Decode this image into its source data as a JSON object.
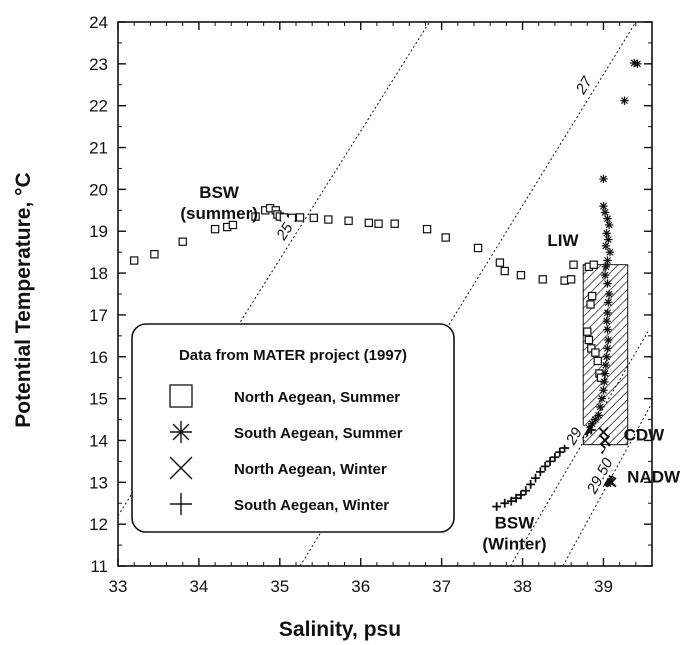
{
  "chart_data": {
    "type": "scatter",
    "xlabel": "Salinity, psu",
    "ylabel": "Potential Temperature, °C",
    "xlim": [
      33,
      39.6
    ],
    "ylim": [
      11,
      24
    ],
    "x_ticks": [
      "33",
      "34",
      "35",
      "36",
      "37",
      "38",
      "39"
    ],
    "y_ticks": [
      "11",
      "12",
      "13",
      "14",
      "15",
      "16",
      "17",
      "18",
      "19",
      "20",
      "21",
      "22",
      "23",
      "24"
    ],
    "grid": false,
    "legend": {
      "title": "Data from MATER project (1997)",
      "placement": "bottom-left inside plot",
      "entries": [
        {
          "label": "North Aegean, Summer",
          "marker": "square"
        },
        {
          "label": "South Aegean, Summer",
          "marker": "asterisk"
        },
        {
          "label": "North Aegean, Winter",
          "marker": "x"
        },
        {
          "label": "South Aegean, Winter",
          "marker": "plus"
        }
      ]
    },
    "isopycnals": [
      {
        "label": "25",
        "points": [
          [
            33.0,
            12.2
          ],
          [
            36.85,
            24.0
          ]
        ]
      },
      {
        "label": "27",
        "points": [
          [
            35.25,
            11.0
          ],
          [
            39.4,
            24.0
          ]
        ]
      },
      {
        "label": "29",
        "points": [
          [
            37.85,
            11.0
          ],
          [
            39.55,
            16.6
          ]
        ]
      },
      {
        "label": "29.50",
        "points": [
          [
            38.5,
            11.0
          ],
          [
            39.6,
            14.9
          ]
        ]
      }
    ],
    "water_masses": [
      {
        "label_lines": [
          "BSW",
          "(summer)"
        ],
        "x": 34.25,
        "y": 19.8
      },
      {
        "label_lines": [
          "LIW"
        ],
        "x": 38.5,
        "y": 18.65
      },
      {
        "label_lines": [
          "CDW"
        ],
        "x": 39.5,
        "y": 14.0
      },
      {
        "label_lines": [
          "NADW"
        ],
        "x": 39.62,
        "y": 13.0
      },
      {
        "label_lines": [
          "BSW",
          "(Winter)"
        ],
        "x": 37.9,
        "y": 11.9
      }
    ],
    "hatched_region": {
      "x": [
        38.75,
        39.3
      ],
      "y": [
        13.9,
        18.2
      ]
    },
    "series": [
      {
        "name": "North Aegean, Summer",
        "marker": "square",
        "points": [
          [
            33.2,
            18.3
          ],
          [
            33.45,
            18.45
          ],
          [
            33.8,
            18.75
          ],
          [
            34.2,
            19.05
          ],
          [
            34.35,
            19.1
          ],
          [
            34.42,
            19.15
          ],
          [
            34.7,
            19.35
          ],
          [
            34.82,
            19.5
          ],
          [
            34.88,
            19.55
          ],
          [
            34.95,
            19.5
          ],
          [
            34.97,
            19.4
          ],
          [
            35.0,
            19.35
          ],
          [
            35.05,
            19.33
          ],
          [
            35.15,
            19.32
          ],
          [
            35.25,
            19.33
          ],
          [
            35.42,
            19.32
          ],
          [
            35.6,
            19.28
          ],
          [
            35.85,
            19.25
          ],
          [
            36.1,
            19.2
          ],
          [
            36.22,
            19.18
          ],
          [
            36.42,
            19.18
          ],
          [
            36.82,
            19.05
          ],
          [
            37.05,
            18.85
          ],
          [
            37.45,
            18.6
          ],
          [
            37.72,
            18.25
          ],
          [
            37.78,
            18.05
          ],
          [
            37.98,
            17.95
          ],
          [
            38.25,
            17.85
          ],
          [
            38.52,
            17.82
          ],
          [
            38.6,
            17.85
          ],
          [
            38.63,
            18.2
          ],
          [
            38.82,
            18.15
          ],
          [
            38.88,
            18.2
          ],
          [
            38.86,
            17.45
          ],
          [
            38.84,
            17.25
          ],
          [
            38.8,
            16.6
          ],
          [
            38.82,
            16.4
          ],
          [
            38.85,
            16.2
          ],
          [
            38.9,
            16.1
          ],
          [
            38.93,
            15.9
          ],
          [
            38.95,
            15.6
          ],
          [
            38.97,
            15.5
          ]
        ]
      },
      {
        "name": "South Aegean, Summer",
        "marker": "asterisk",
        "points": [
          [
            39.38,
            23.02
          ],
          [
            39.42,
            23.0
          ],
          [
            39.26,
            22.12
          ],
          [
            39.0,
            20.25
          ],
          [
            39.0,
            19.6
          ],
          [
            39.02,
            19.45
          ],
          [
            39.05,
            19.3
          ],
          [
            39.07,
            19.15
          ],
          [
            39.04,
            18.95
          ],
          [
            39.06,
            18.8
          ],
          [
            39.03,
            18.65
          ],
          [
            39.08,
            18.5
          ],
          [
            39.05,
            18.3
          ],
          [
            39.03,
            18.15
          ],
          [
            39.02,
            17.95
          ],
          [
            39.05,
            17.75
          ],
          [
            39.07,
            17.5
          ],
          [
            39.06,
            17.3
          ],
          [
            39.05,
            17.05
          ],
          [
            39.04,
            16.85
          ],
          [
            39.05,
            16.65
          ],
          [
            39.06,
            16.4
          ],
          [
            39.05,
            16.2
          ],
          [
            39.04,
            16.0
          ],
          [
            39.03,
            15.8
          ],
          [
            39.02,
            15.6
          ],
          [
            39.01,
            15.4
          ],
          [
            39.0,
            15.2
          ],
          [
            38.98,
            15.0
          ],
          [
            38.96,
            14.8
          ],
          [
            38.94,
            14.6
          ],
          [
            38.9,
            14.5
          ],
          [
            38.86,
            14.4
          ],
          [
            38.82,
            14.3
          ]
        ]
      },
      {
        "name": "North Aegean, Winter",
        "marker": "x",
        "points": [
          [
            39.0,
            14.2
          ],
          [
            39.02,
            14.0
          ],
          [
            39.03,
            13.8
          ],
          [
            39.04,
            13.6
          ],
          [
            39.05,
            13.4
          ],
          [
            39.05,
            13.2
          ],
          [
            39.06,
            13.05
          ],
          [
            39.04,
            13.0
          ],
          [
            39.08,
            13.02
          ],
          [
            39.1,
            13.0
          ]
        ]
      },
      {
        "name": "South Aegean, Winter",
        "marker": "plus",
        "points": [
          [
            37.68,
            12.42
          ],
          [
            37.78,
            12.5
          ],
          [
            37.86,
            12.55
          ],
          [
            37.92,
            12.62
          ],
          [
            37.98,
            12.7
          ],
          [
            38.04,
            12.8
          ],
          [
            38.1,
            12.95
          ],
          [
            38.16,
            13.1
          ],
          [
            38.22,
            13.25
          ],
          [
            38.28,
            13.38
          ],
          [
            38.34,
            13.5
          ],
          [
            38.4,
            13.6
          ],
          [
            38.46,
            13.72
          ],
          [
            38.52,
            13.82
          ],
          [
            38.58,
            13.92
          ],
          [
            38.64,
            14.02
          ],
          [
            38.7,
            14.08
          ],
          [
            38.75,
            14.15
          ],
          [
            38.8,
            14.2
          ],
          [
            38.85,
            14.25
          ]
        ]
      }
    ]
  }
}
